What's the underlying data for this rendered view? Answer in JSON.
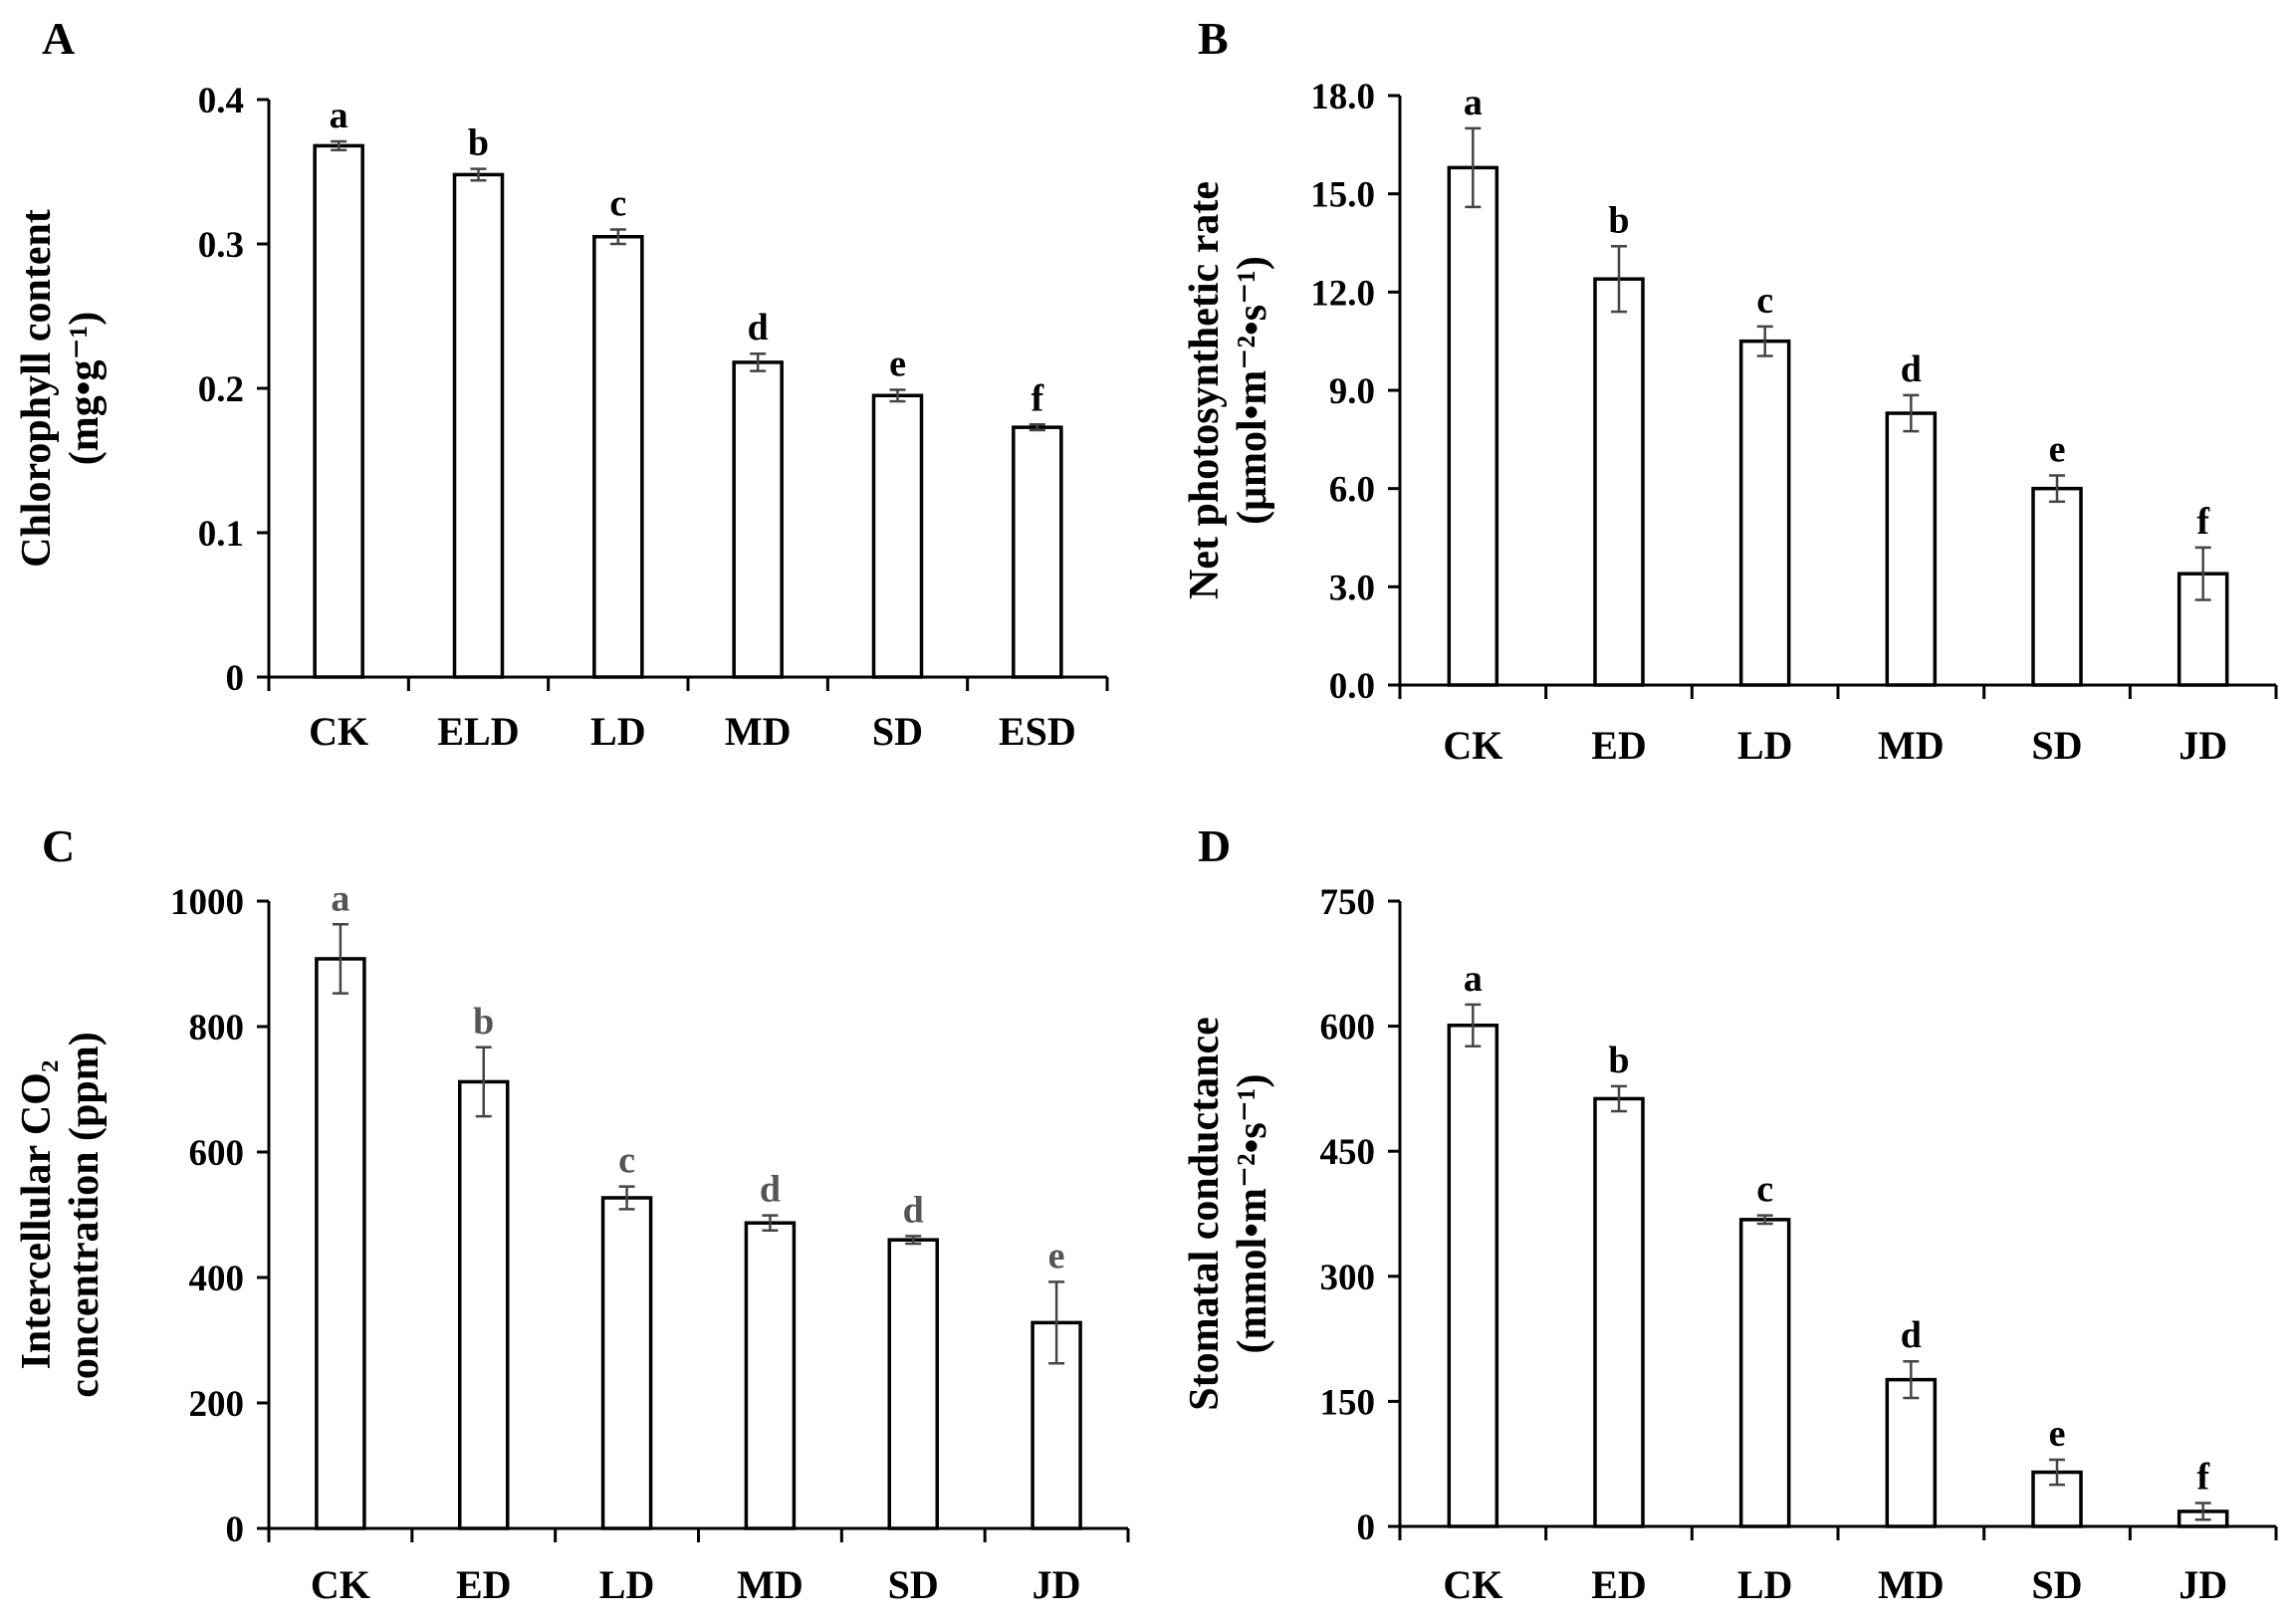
{
  "chart_data": [
    {
      "id": "A",
      "type": "bar",
      "panel_label": "A",
      "categories": [
        "CK",
        "ELD",
        "LD",
        "MD",
        "SD",
        "ESD"
      ],
      "values": [
        0.368,
        0.348,
        0.305,
        0.218,
        0.195,
        0.173
      ],
      "errors": [
        0.003,
        0.004,
        0.005,
        0.006,
        0.004,
        0.002
      ],
      "significance": [
        "a",
        "b",
        "c",
        "d",
        "e",
        "f"
      ],
      "ylabel_line1": "Chlorophyll content",
      "ylabel_line2": "(mg•g⁻¹)",
      "ylim": [
        0,
        0.4
      ],
      "yticks": [
        0,
        0.1,
        0.2,
        0.3,
        0.4
      ],
      "ytick_labels": [
        "0",
        "0.1",
        "0.2",
        "0.3",
        "0.4"
      ],
      "letter_color": "#000000"
    },
    {
      "id": "B",
      "type": "bar",
      "panel_label": "B",
      "categories": [
        "CK",
        "ED",
        "LD",
        "MD",
        "SD",
        "JD"
      ],
      "values": [
        15.8,
        12.4,
        10.5,
        8.3,
        6.0,
        3.4
      ],
      "errors": [
        1.2,
        1.0,
        0.45,
        0.55,
        0.4,
        0.8
      ],
      "significance": [
        "a",
        "b",
        "c",
        "d",
        "e",
        "f"
      ],
      "ylabel_line1": "Net photosynthetic rate",
      "ylabel_line2": "(μmol•m⁻²•s⁻¹)",
      "ylim": [
        0,
        18
      ],
      "yticks": [
        0,
        3,
        6,
        9,
        12,
        15,
        18
      ],
      "ytick_labels": [
        "0.0",
        "3.0",
        "6.0",
        "9.0",
        "12.0",
        "15.0",
        "18.0"
      ],
      "letter_color": "#000000"
    },
    {
      "id": "C",
      "type": "bar",
      "panel_label": "C",
      "categories": [
        "CK",
        "ED",
        "LD",
        "MD",
        "SD",
        "JD"
      ],
      "values": [
        908,
        712,
        527,
        487,
        460,
        328
      ],
      "errors": [
        55,
        55,
        18,
        12,
        6,
        65
      ],
      "significance": [
        "a",
        "b",
        "c",
        "d",
        "d",
        "e"
      ],
      "ylabel_line1": "Intercellular CO₂",
      "ylabel_line2": "concentration (ppm)",
      "ylim": [
        0,
        1000
      ],
      "yticks": [
        0,
        200,
        400,
        600,
        800,
        1000
      ],
      "ytick_labels": [
        "0",
        "200",
        "400",
        "600",
        "800",
        "1000"
      ],
      "letter_color": "#555555"
    },
    {
      "id": "D",
      "type": "bar",
      "panel_label": "D",
      "categories": [
        "CK",
        "ED",
        "LD",
        "MD",
        "SD",
        "JD"
      ],
      "values": [
        601,
        513,
        368,
        176,
        65,
        18
      ],
      "errors": [
        25,
        15,
        5,
        22,
        15,
        10
      ],
      "significance": [
        "a",
        "b",
        "c",
        "d",
        "e",
        "f"
      ],
      "ylabel_line1": "Stomatal conductance",
      "ylabel_line2": "(mmol•m⁻²•s⁻¹)",
      "ylim": [
        0,
        750
      ],
      "yticks": [
        0,
        150,
        300,
        450,
        600,
        750
      ],
      "ytick_labels": [
        "0",
        "150",
        "300",
        "450",
        "600",
        "750"
      ],
      "letter_color": "#000000"
    }
  ]
}
